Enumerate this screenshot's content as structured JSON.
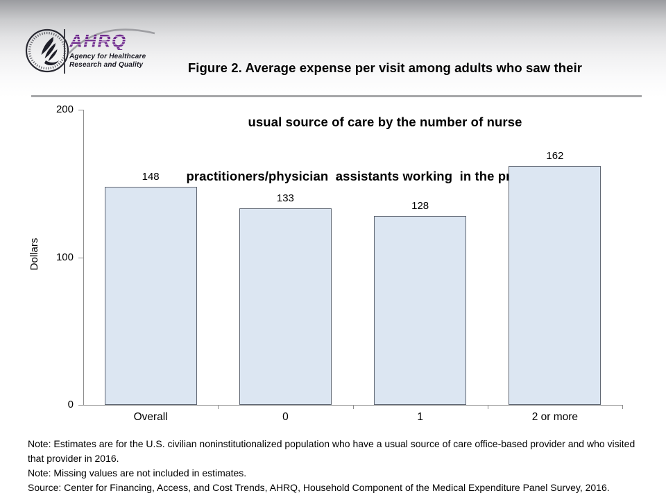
{
  "header": {
    "logo": {
      "ahrq_acronym": "AHRQ",
      "agency_line1": "Agency for Healthcare",
      "agency_line2": "Research and Quality",
      "brand_purple": "#6F2B8D"
    },
    "title_lines": [
      "Figure 2. Average expense per visit among adults who saw their",
      "usual source of care by the number of nurse",
      "practitioners/physician  assistants working  in the practice, 2016"
    ]
  },
  "chart_data": {
    "type": "bar",
    "title": "Figure 2. Average expense per visit among adults who saw their usual source of care by the number of nurse practitioners/physician assistants working in the practice, 2016",
    "categories": [
      "Overall",
      "0",
      "1",
      "2 or more"
    ],
    "values": [
      148,
      133,
      128,
      162
    ],
    "xlabel": "",
    "ylabel": "Dollars",
    "ylim": [
      0,
      200
    ],
    "yticks": [
      0,
      100,
      200
    ],
    "grid": false,
    "legend": false,
    "bar_fill": "#DCE6F2",
    "bar_border": "#5F6672",
    "axis_color": "#8C8C8C"
  },
  "notes": [
    "Note: Estimates are for the U.S. civilian noninstitutionalized population who have a usual source of care office-based provider and who visited that provider in 2016.",
    "Note: Missing values are not included in estimates.",
    "Source: Center for Financing, Access, and Cost Trends, AHRQ, Household Component of the Medical Expenditure Panel Survey, 2016."
  ],
  "divider_color": "#A6A7A9"
}
